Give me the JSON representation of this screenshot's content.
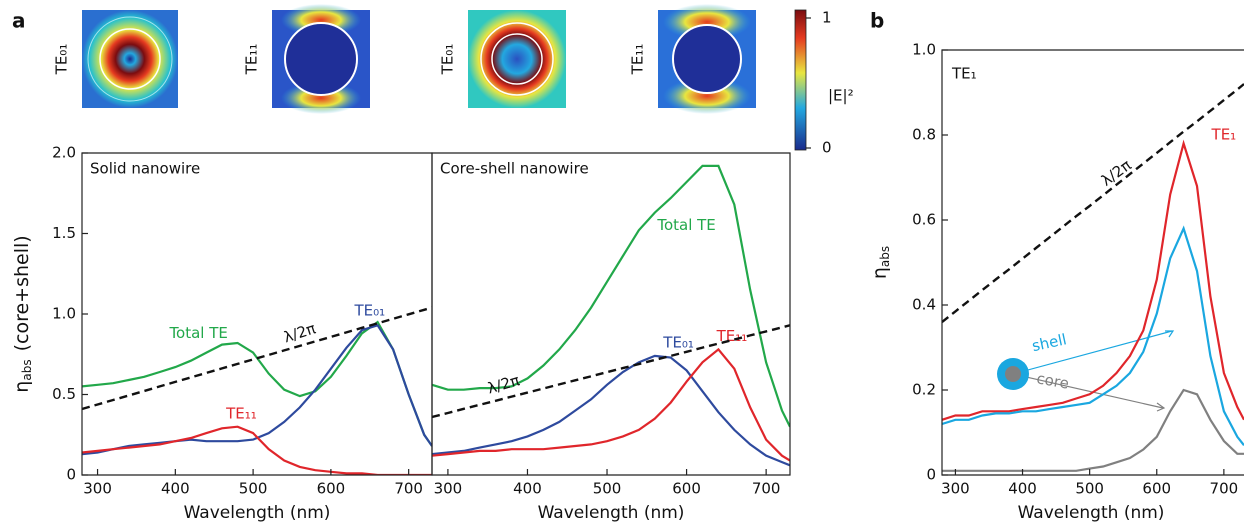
{
  "panel_labels": [
    "a",
    "b"
  ],
  "field_maps": {
    "labels": [
      "TE₀₁",
      "TE₁₁",
      "TE₀₁",
      "TE₁₁"
    ],
    "colorbar": {
      "label": "|E|²",
      "ticks": [
        0,
        1
      ]
    }
  },
  "chart_data": [
    {
      "type": "line",
      "title": "Solid nanowire",
      "xlabel": "Wavelength (nm)",
      "ylabel": [
        "η",
        "abs",
        "(core+shell)"
      ],
      "x": [
        280,
        300,
        320,
        340,
        360,
        380,
        400,
        420,
        440,
        460,
        480,
        500,
        520,
        540,
        560,
        580,
        600,
        620,
        640,
        660,
        680,
        700,
        720,
        730
      ],
      "xlim": [
        280,
        730
      ],
      "xticks": [
        300,
        400,
        500,
        600,
        700
      ],
      "ylim": [
        0,
        2
      ],
      "yticks": [
        0,
        {
          "value": 0.5,
          "label": "0.5"
        },
        {
          "value": 1,
          "label": "1.0"
        },
        {
          "value": 1.5,
          "label": "1.5"
        },
        {
          "value": 2,
          "label": "2.0"
        }
      ],
      "series": [
        {
          "name": "Total TE",
          "color": "#22a84a",
          "values": [
            0.55,
            0.56,
            0.57,
            0.59,
            0.61,
            0.64,
            0.67,
            0.71,
            0.76,
            0.81,
            0.82,
            0.76,
            0.63,
            0.53,
            0.49,
            0.52,
            0.61,
            0.74,
            0.88,
            0.95,
            0.78,
            0.5,
            0.25,
            0.18
          ]
        },
        {
          "name": "TE₀₁",
          "color": "#2e4a9e",
          "values": [
            0.13,
            0.14,
            0.16,
            0.18,
            0.19,
            0.2,
            0.21,
            0.22,
            0.21,
            0.21,
            0.21,
            0.22,
            0.26,
            0.33,
            0.42,
            0.53,
            0.66,
            0.79,
            0.9,
            0.93,
            0.78,
            0.5,
            0.25,
            0.18
          ]
        },
        {
          "name": "TE₁₁",
          "color": "#e0262b",
          "values": [
            0.14,
            0.15,
            0.16,
            0.17,
            0.18,
            0.19,
            0.21,
            0.23,
            0.26,
            0.29,
            0.3,
            0.26,
            0.16,
            0.09,
            0.05,
            0.03,
            0.02,
            0.01,
            0.01,
            0,
            0,
            0,
            0,
            0
          ]
        },
        {
          "name": "λ/2π",
          "color": "#111111",
          "dashed": true,
          "values": [
            0.41,
            0.438,
            0.466,
            0.494,
            0.522,
            0.55,
            0.578,
            0.606,
            0.634,
            0.662,
            0.69,
            0.718,
            0.746,
            0.774,
            0.802,
            0.83,
            0.858,
            0.886,
            0.914,
            0.942,
            0.97,
            0.998,
            1.026,
            1.04
          ]
        }
      ]
    },
    {
      "type": "line",
      "title": "Core-shell nanowire",
      "xlabel": "Wavelength (nm)",
      "x": [
        280,
        300,
        320,
        340,
        360,
        380,
        400,
        420,
        440,
        460,
        480,
        500,
        520,
        540,
        560,
        580,
        600,
        620,
        640,
        660,
        680,
        700,
        720,
        730
      ],
      "xlim": [
        280,
        730
      ],
      "xticks": [
        300,
        400,
        500,
        600,
        700
      ],
      "ylim": [
        0,
        2
      ],
      "series": [
        {
          "name": "Total TE",
          "color": "#22a84a",
          "values": [
            0.56,
            0.53,
            0.53,
            0.54,
            0.54,
            0.55,
            0.6,
            0.68,
            0.78,
            0.9,
            1.04,
            1.2,
            1.36,
            1.52,
            1.63,
            1.72,
            1.82,
            1.92,
            1.92,
            1.68,
            1.15,
            0.7,
            0.4,
            0.3
          ]
        },
        {
          "name": "TE₀₁",
          "color": "#2e4a9e",
          "values": [
            0.13,
            0.14,
            0.15,
            0.17,
            0.19,
            0.21,
            0.24,
            0.28,
            0.33,
            0.4,
            0.47,
            0.56,
            0.64,
            0.7,
            0.74,
            0.73,
            0.65,
            0.52,
            0.39,
            0.28,
            0.19,
            0.12,
            0.08,
            0.06
          ]
        },
        {
          "name": "TE₁₁",
          "color": "#e0262b",
          "values": [
            0.12,
            0.13,
            0.14,
            0.15,
            0.15,
            0.16,
            0.16,
            0.16,
            0.17,
            0.18,
            0.19,
            0.21,
            0.24,
            0.28,
            0.35,
            0.45,
            0.58,
            0.7,
            0.78,
            0.66,
            0.42,
            0.22,
            0.12,
            0.09
          ]
        },
        {
          "name": "λ/2π",
          "color": "#111111",
          "dashed": true,
          "values": [
            0.36,
            0.385,
            0.411,
            0.436,
            0.461,
            0.487,
            0.512,
            0.537,
            0.563,
            0.588,
            0.613,
            0.639,
            0.664,
            0.689,
            0.715,
            0.74,
            0.765,
            0.791,
            0.816,
            0.841,
            0.867,
            0.892,
            0.917,
            0.93
          ]
        }
      ]
    },
    {
      "type": "line",
      "title": "TE₁",
      "xlabel": "Wavelength (nm)",
      "ylabel": [
        "η",
        "abs"
      ],
      "x": [
        280,
        300,
        320,
        340,
        360,
        380,
        400,
        420,
        440,
        460,
        480,
        500,
        520,
        540,
        560,
        580,
        600,
        620,
        640,
        660,
        680,
        700,
        720,
        730
      ],
      "xlim": [
        280,
        730
      ],
      "xticks": [
        300,
        400,
        500,
        600,
        700
      ],
      "ylim": [
        0,
        1
      ],
      "yticks": [
        0,
        {
          "value": 0.2,
          "label": "0.2"
        },
        {
          "value": 0.4,
          "label": "0.4"
        },
        {
          "value": 0.6,
          "label": "0.6"
        },
        {
          "value": 0.8,
          "label": "0.8"
        },
        {
          "value": 1,
          "label": "1.0"
        }
      ],
      "series": [
        {
          "name": "TE₁",
          "color": "#e0262b",
          "values": [
            0.13,
            0.14,
            0.14,
            0.15,
            0.15,
            0.15,
            0.155,
            0.16,
            0.165,
            0.17,
            0.18,
            0.19,
            0.21,
            0.24,
            0.28,
            0.34,
            0.46,
            0.66,
            0.78,
            0.68,
            0.42,
            0.24,
            0.16,
            0.13
          ]
        },
        {
          "name": "shell",
          "color": "#1aa7e0",
          "values": [
            0.12,
            0.13,
            0.13,
            0.14,
            0.145,
            0.145,
            0.15,
            0.15,
            0.155,
            0.16,
            0.165,
            0.17,
            0.19,
            0.21,
            0.24,
            0.29,
            0.38,
            0.51,
            0.58,
            0.48,
            0.28,
            0.15,
            0.09,
            0.07
          ]
        },
        {
          "name": "core",
          "color": "#808080",
          "values": [
            0.01,
            0.01,
            0.01,
            0.01,
            0.01,
            0.01,
            0.01,
            0.01,
            0.01,
            0.01,
            0.01,
            0.015,
            0.02,
            0.03,
            0.04,
            0.06,
            0.09,
            0.15,
            0.2,
            0.19,
            0.13,
            0.08,
            0.05,
            0.05
          ]
        },
        {
          "name": "λ/2π",
          "color": "#111111",
          "dashed": true,
          "values": [
            0.36,
            0.385,
            0.41,
            0.435,
            0.46,
            0.484,
            0.509,
            0.534,
            0.559,
            0.584,
            0.609,
            0.633,
            0.658,
            0.683,
            0.708,
            0.733,
            0.758,
            0.783,
            0.808,
            0.832,
            0.857,
            0.882,
            0.907,
            0.92
          ]
        }
      ]
    }
  ]
}
